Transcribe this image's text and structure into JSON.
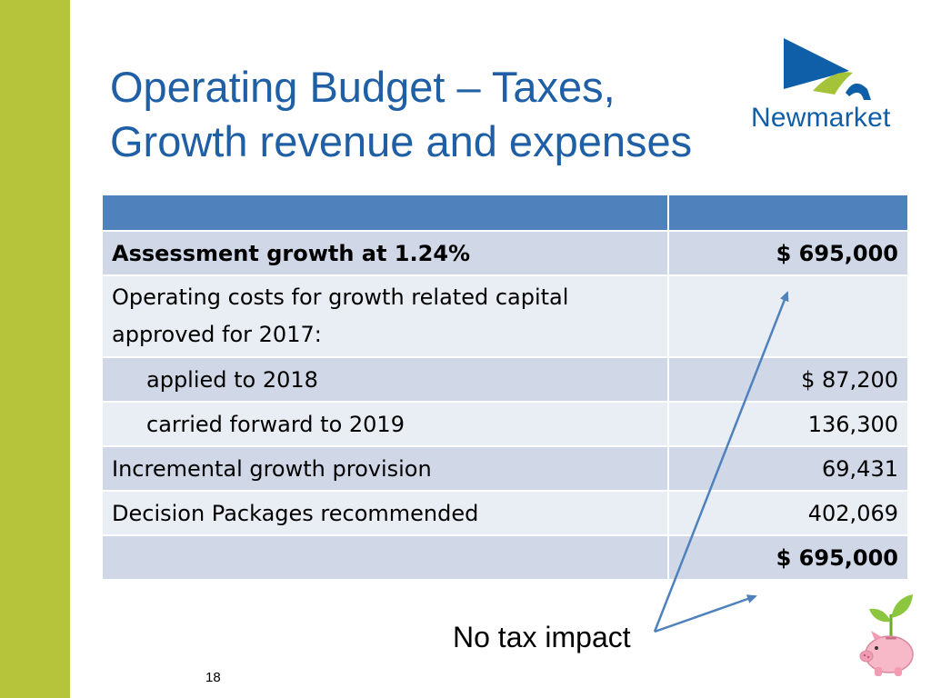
{
  "slide": {
    "title_line1": "Operating Budget – Taxes,",
    "title_line2": "Growth revenue and expenses",
    "logo_text": "Newmarket",
    "note": "No tax impact",
    "page_number": "18",
    "colors": {
      "side_bar": "#b5c43a",
      "title": "#1f5fa5",
      "table_header": "#4f81bd",
      "row_dark": "#d0d8e8",
      "row_light": "#e9edf4",
      "arrow": "#4f81bd"
    }
  },
  "table": {
    "header": [
      "",
      ""
    ],
    "rows": [
      {
        "label": "Assessment growth at 1.24%",
        "amount": "$ 695,000"
      },
      {
        "label": "Operating costs for growth related capital approved for 2017:",
        "amount": ""
      },
      {
        "label": "applied to 2018",
        "amount": "$ 87,200"
      },
      {
        "label": "carried forward to 2019",
        "amount": "136,300"
      },
      {
        "label": "Incremental growth provision",
        "amount": "69,431"
      },
      {
        "label": "Decision Packages recommended",
        "amount": "402,069"
      },
      {
        "label": "",
        "amount": "$ 695,000"
      }
    ]
  }
}
